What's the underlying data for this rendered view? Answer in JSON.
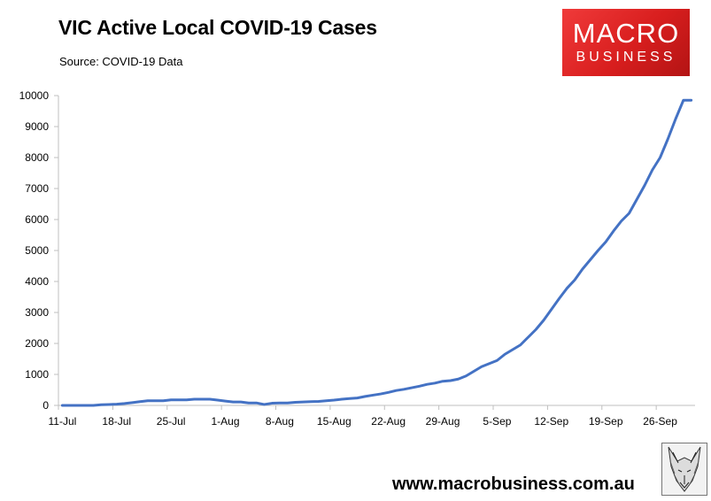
{
  "header": {
    "title": "VIC Active Local COVID-19 Cases",
    "source": "Source: COVID-19 Data"
  },
  "logo": {
    "line1": "MACRO",
    "line2": "BUSINESS",
    "color": "#e22a2a"
  },
  "footer": {
    "url": "www.macrobusiness.com.au",
    "fox_icon": "fox-sketch-icon"
  },
  "chart_data": {
    "type": "line",
    "title": "VIC Active Local COVID-19 Cases",
    "subtitle": "Source: COVID-19 Data",
    "xlabel": "",
    "ylabel": "",
    "ylim": [
      0,
      10000
    ],
    "y_ticks": [
      0,
      1000,
      2000,
      3000,
      4000,
      5000,
      6000,
      7000,
      8000,
      9000,
      10000
    ],
    "x_tick_labels": [
      "11-Jul",
      "18-Jul",
      "25-Jul",
      "1-Aug",
      "8-Aug",
      "15-Aug",
      "22-Aug",
      "29-Aug",
      "5-Sep",
      "12-Sep",
      "19-Sep",
      "26-Sep"
    ],
    "grid": false,
    "legend": "none",
    "line_color": "#4472c4",
    "series": [
      {
        "x": [
          "11-Jul",
          "12-Jul",
          "13-Jul",
          "14-Jul",
          "15-Jul",
          "16-Jul",
          "17-Jul",
          "18-Jul",
          "19-Jul",
          "20-Jul",
          "21-Jul",
          "22-Jul",
          "23-Jul",
          "24-Jul",
          "25-Jul",
          "26-Jul",
          "27-Jul",
          "28-Jul",
          "29-Jul",
          "30-Jul",
          "31-Jul",
          "1-Aug",
          "2-Aug",
          "3-Aug",
          "4-Aug",
          "5-Aug",
          "6-Aug",
          "7-Aug",
          "8-Aug",
          "9-Aug",
          "10-Aug",
          "11-Aug",
          "12-Aug",
          "13-Aug",
          "14-Aug",
          "15-Aug",
          "16-Aug",
          "17-Aug",
          "18-Aug",
          "19-Aug",
          "20-Aug",
          "21-Aug",
          "22-Aug",
          "23-Aug",
          "24-Aug",
          "25-Aug",
          "26-Aug",
          "27-Aug",
          "28-Aug",
          "29-Aug",
          "30-Aug",
          "31-Aug",
          "1-Sep",
          "2-Sep",
          "3-Sep",
          "4-Sep",
          "5-Sep",
          "6-Sep",
          "7-Sep",
          "8-Sep",
          "9-Sep",
          "10-Sep",
          "11-Sep",
          "12-Sep",
          "13-Sep",
          "14-Sep",
          "15-Sep",
          "16-Sep",
          "17-Sep",
          "18-Sep",
          "19-Sep",
          "20-Sep",
          "21-Sep",
          "22-Sep",
          "23-Sep",
          "24-Sep",
          "25-Sep",
          "26-Sep",
          "27-Sep",
          "28-Sep",
          "29-Sep",
          "30-Sep"
        ],
        "values": [
          0,
          0,
          0,
          0,
          0,
          20,
          30,
          40,
          60,
          90,
          120,
          150,
          150,
          150,
          180,
          180,
          180,
          200,
          200,
          200,
          170,
          140,
          110,
          110,
          80,
          80,
          30,
          70,
          80,
          80,
          100,
          110,
          120,
          130,
          150,
          170,
          200,
          220,
          240,
          290,
          330,
          370,
          420,
          480,
          520,
          570,
          620,
          680,
          720,
          780,
          800,
          850,
          950,
          1100,
          1250,
          1350,
          1450,
          1650,
          1800,
          1950,
          2200,
          2450,
          2750,
          3100,
          3450,
          3780,
          4050,
          4400,
          4700,
          5000,
          5280,
          5630,
          5950,
          6200,
          6650,
          7100,
          7600,
          8000,
          8600,
          9250,
          9850,
          9850
        ]
      }
    ]
  }
}
